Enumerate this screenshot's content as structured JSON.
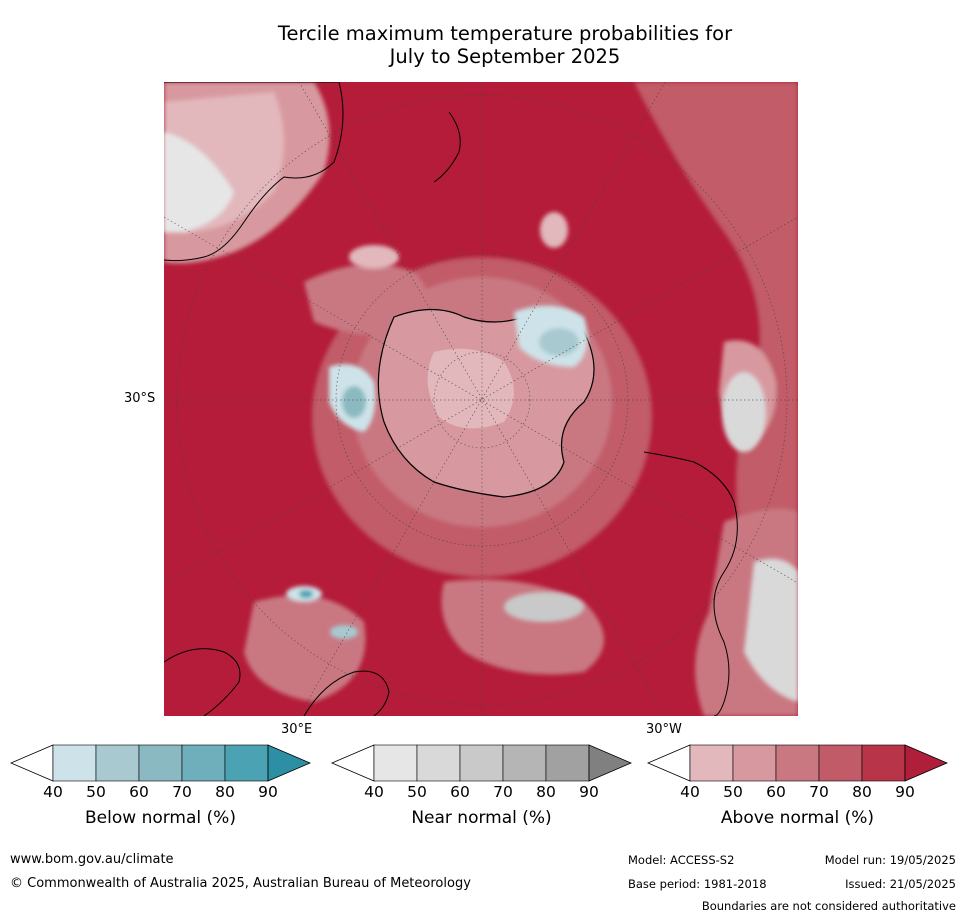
{
  "title_line1": "Tercile maximum temperature probabilities for",
  "title_line2": "July to September 2025",
  "map": {
    "label_30s": "30°S",
    "label_30e": "30°E",
    "label_30w": "30°W"
  },
  "colorbars": [
    {
      "title": "Below normal (%)",
      "ticks": [
        "40",
        "50",
        "60",
        "70",
        "80",
        "90"
      ],
      "colors": [
        "#ffffff",
        "#cde3e9",
        "#a8c9d0",
        "#8bb9c1",
        "#6faebb",
        "#4aa2b3",
        "#2c8fa3"
      ]
    },
    {
      "title": "Near normal (%)",
      "ticks": [
        "40",
        "50",
        "60",
        "70",
        "80",
        "90"
      ],
      "colors": [
        "#ffffff",
        "#e6e6e6",
        "#d9d9d9",
        "#c9c9c9",
        "#b5b5b5",
        "#a1a1a1",
        "#808080"
      ]
    },
    {
      "title": "Above normal (%)",
      "ticks": [
        "40",
        "50",
        "60",
        "70",
        "80",
        "90"
      ],
      "colors": [
        "#ffffff",
        "#e2b8bc",
        "#d7999f",
        "#c97882",
        "#c15b67",
        "#b83549",
        "#b01f3a"
      ]
    }
  ],
  "footer": {
    "website": "www.bom.gov.au/climate",
    "copyright": "© Commonwealth of Australia 2025, Australian Bureau of Meteorology",
    "model": "Model: ACCESS-S2",
    "base_period": "Base period: 1981-2018",
    "model_run": "Model run: 19/05/2025",
    "issued": "Issued: 21/05/2025",
    "disclaimer": "Boundaries are not considered authoritative"
  }
}
